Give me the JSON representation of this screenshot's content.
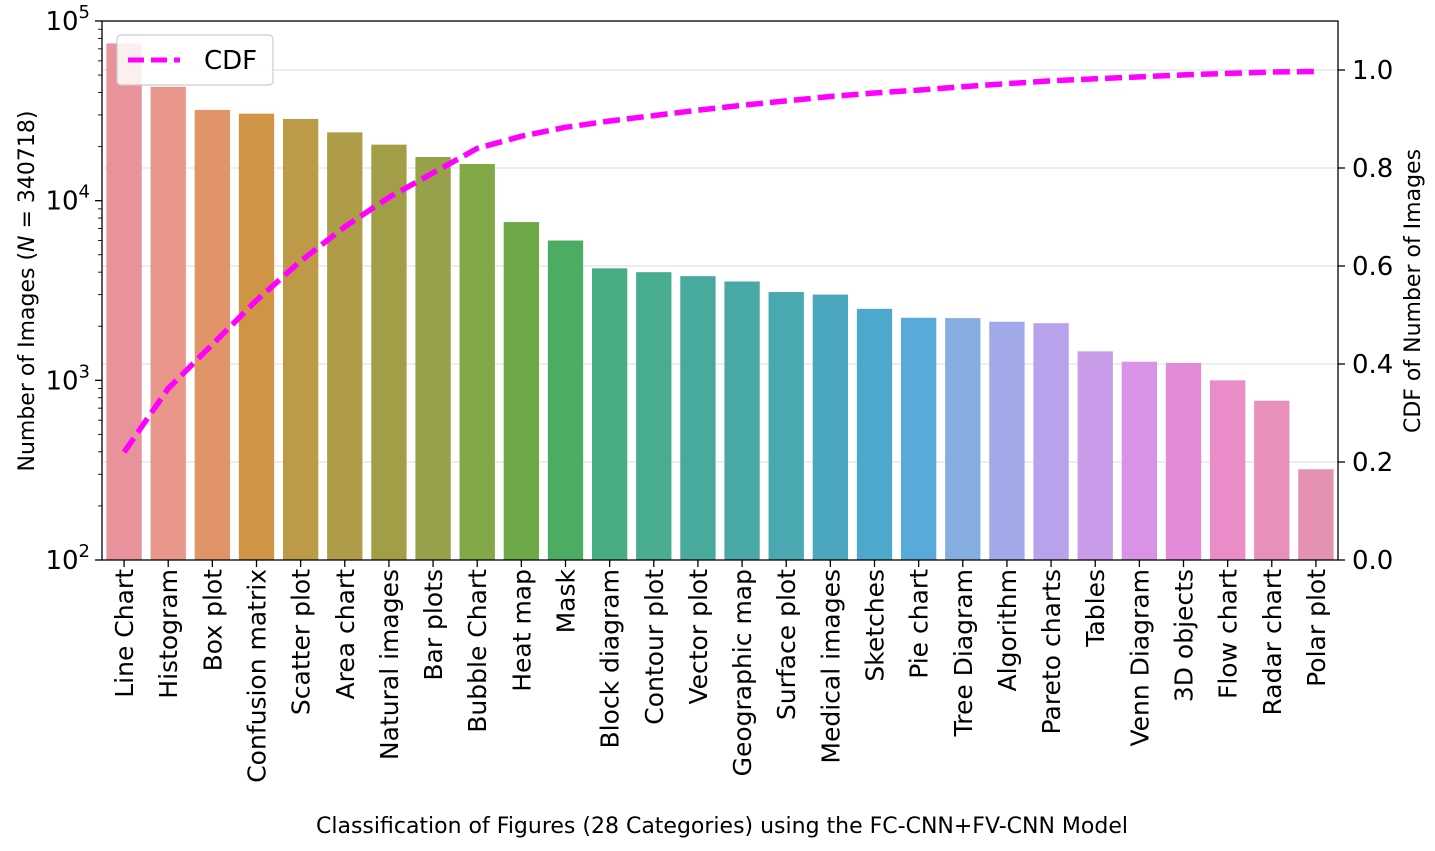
{
  "chart_data": {
    "type": "bar",
    "xlabel": "Classification of Figures (28 Categories) using the FC-CNN+FV-CNN Model",
    "ylabel": "Number of Images (N = 340718)",
    "ylabel_parts": {
      "before": "Number of Images (",
      "var": "N",
      "after": " = 340718)"
    },
    "y2label": "CDF of Number of Images",
    "y_scale": "log",
    "ylim": [
      100,
      100000
    ],
    "y_ticks": [
      {
        "value": 100,
        "base": "10",
        "exp": "2"
      },
      {
        "value": 1000,
        "base": "10",
        "exp": "3"
      },
      {
        "value": 10000,
        "base": "10",
        "exp": "4"
      },
      {
        "value": 100000,
        "base": "10",
        "exp": "5"
      }
    ],
    "y2lim": [
      0.0,
      1.1
    ],
    "y2_ticks": [
      "0.0",
      "0.2",
      "0.4",
      "0.6",
      "0.8",
      "1.0"
    ],
    "grid": "horizontal (right axis)",
    "legend": {
      "position": "top-left",
      "entries": [
        "CDF"
      ]
    },
    "categories": [
      "Line Chart",
      "Histogram",
      "Box plot",
      "Confusion matrix",
      "Scatter plot",
      "Area chart",
      "Natural images",
      "Bar plots",
      "Bubble Chart",
      "Heat map",
      "Mask",
      "Block diagram",
      "Contour plot",
      "Vector plot",
      "Geographic map",
      "Surface plot",
      "Medical images",
      "Sketches",
      "Pie chart",
      "Tree Diagram",
      "Algorithm",
      "Pareto charts",
      "Tables",
      "Venn Diagram",
      "3D objects",
      "Flow chart",
      "Radar chart",
      "Polar plot"
    ],
    "values": [
      75000,
      43000,
      32000,
      30500,
      28500,
      24000,
      20500,
      17500,
      16000,
      7600,
      6000,
      4200,
      4000,
      3800,
      3550,
      3100,
      3000,
      2500,
      2230,
      2220,
      2120,
      2080,
      1450,
      1270,
      1250,
      1000,
      770,
      320
    ],
    "cdf": [
      0.22,
      0.35,
      0.44,
      0.53,
      0.61,
      0.68,
      0.74,
      0.79,
      0.84,
      0.865,
      0.883,
      0.896,
      0.907,
      0.918,
      0.928,
      0.937,
      0.946,
      0.953,
      0.959,
      0.966,
      0.972,
      0.978,
      0.982,
      0.986,
      0.99,
      0.993,
      0.996,
      0.997
    ],
    "bar_colors": [
      "#e8939c",
      "#e8978a",
      "#e19468",
      "#cf9446",
      "#bd9a48",
      "#ae9c48",
      "#a29d47",
      "#97a149",
      "#82a847",
      "#6daa47",
      "#4cad62",
      "#48ad82",
      "#48ac91",
      "#48aa9c",
      "#49a9a6",
      "#4aa8b1",
      "#4ba7bd",
      "#4ca9cd",
      "#57aad9",
      "#86addf",
      "#a1a9e8",
      "#b9a2ec",
      "#c99ce9",
      "#d892e6",
      "#e38ad8",
      "#e98cc8",
      "#e88fbb",
      "#e591b2"
    ],
    "cdf_color": "#ff00ff",
    "series": [
      {
        "name": "CDF",
        "axis": "right",
        "style": "dashed line"
      }
    ]
  }
}
